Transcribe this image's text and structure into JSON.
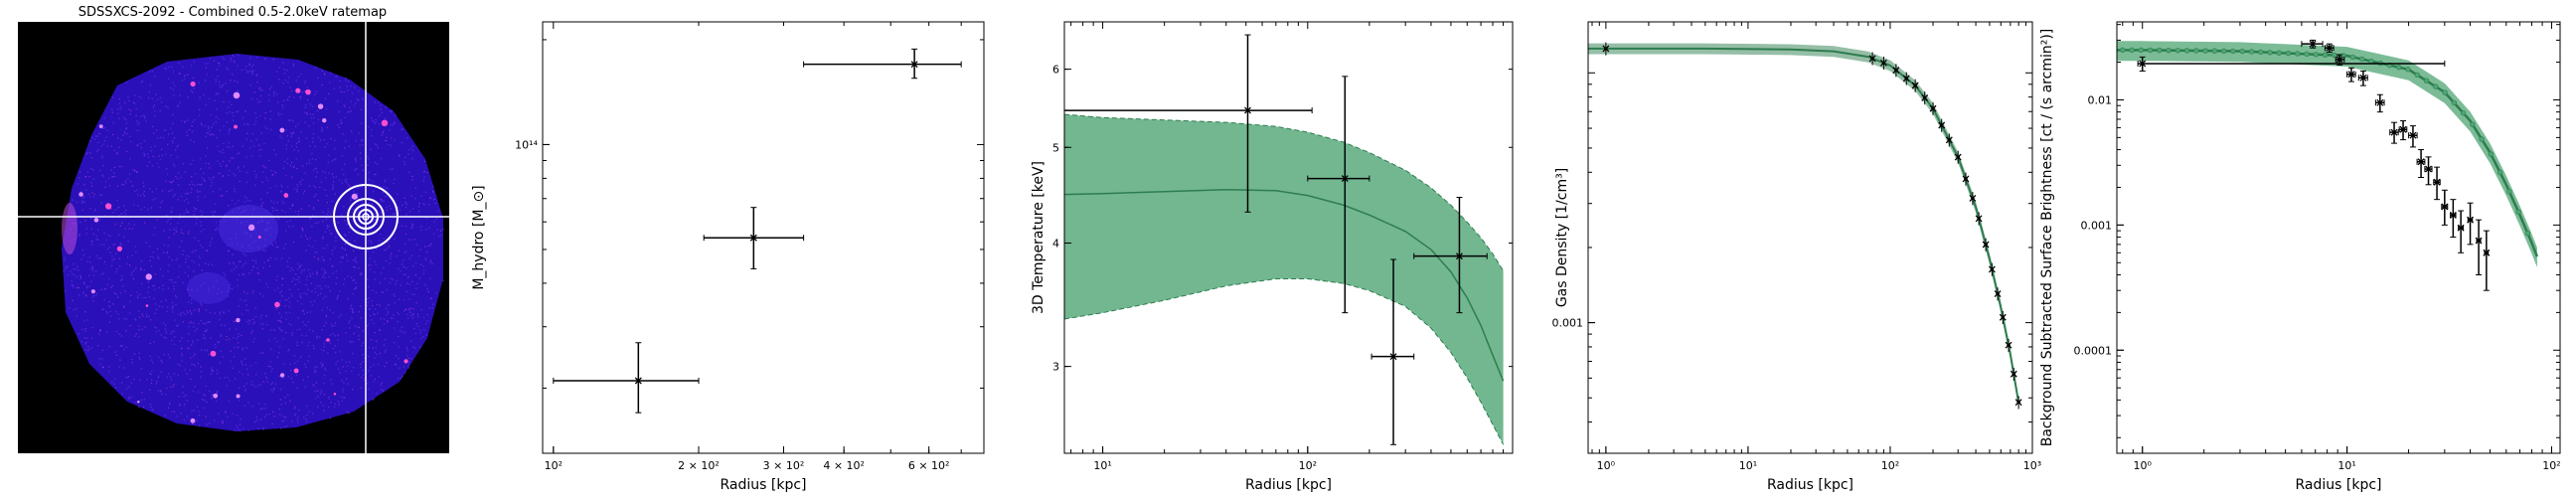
{
  "figure": {
    "image_panel": {
      "title": "SDSSXCS-2092 - Combined 0.5-2.0keV ratemap",
      "colors": {
        "background": "#000000",
        "cluster_fill": "#2a10b8",
        "sources": "#ff4fd0",
        "crosshair": "#ffffff"
      }
    }
  },
  "chart_data": [
    {
      "type": "scatter",
      "panel": "hydrostatic-mass",
      "xlabel": "Radius [kpc]",
      "ylabel": "M_hydro [M_⊙]",
      "xscale": "log",
      "yscale": "log",
      "xlim": [
        95,
        780
      ],
      "ylim": [
        13000000000000.0,
        225000000000000.0
      ],
      "xticks": [
        {
          "v": 100,
          "label": "10²"
        },
        {
          "v": 200,
          "label": "2 × 10²"
        },
        {
          "v": 300,
          "label": "3 × 10²"
        },
        {
          "v": 400,
          "label": "4 × 10²"
        },
        {
          "v": 600,
          "label": "6 × 10²"
        }
      ],
      "yticks": [
        {
          "v": 100000000000000.0,
          "label": "10¹⁴"
        }
      ],
      "points": [
        {
          "x": 150,
          "xlo": 100,
          "xhi": 200,
          "y": 21000000000000.0,
          "ylo": 17000000000000.0,
          "yhi": 27000000000000.0
        },
        {
          "x": 260,
          "xlo": 205,
          "xhi": 330,
          "y": 54000000000000.0,
          "ylo": 44000000000000.0,
          "yhi": 66000000000000.0
        },
        {
          "x": 560,
          "xlo": 330,
          "xhi": 700,
          "y": 170000000000000.0,
          "ylo": 155000000000000.0,
          "yhi": 188000000000000.0
        }
      ],
      "colors": {
        "points": "#000000"
      }
    },
    {
      "type": "area",
      "panel": "temperature-profile",
      "xlabel": "Radius [kpc]",
      "ylabel": "3D Temperature [keV]",
      "xscale": "log",
      "yscale": "log",
      "xlim": [
        6.5,
        1000
      ],
      "ylim": [
        2.45,
        6.7
      ],
      "xticks": [
        {
          "v": 10,
          "label": "10¹"
        },
        {
          "v": 100,
          "label": "10²"
        }
      ],
      "yticks": [
        {
          "v": 3,
          "label": "3"
        },
        {
          "v": 4,
          "label": "4"
        },
        {
          "v": 5,
          "label": "5"
        },
        {
          "v": 6,
          "label": "6"
        }
      ],
      "model": {
        "x": [
          6.5,
          10,
          20,
          40,
          70,
          100,
          150,
          200,
          300,
          400,
          500,
          600,
          700,
          800,
          900
        ],
        "y": [
          4.48,
          4.49,
          4.51,
          4.53,
          4.52,
          4.47,
          4.37,
          4.27,
          4.11,
          3.94,
          3.74,
          3.52,
          3.3,
          3.08,
          2.9
        ],
        "lo": [
          3.35,
          3.4,
          3.5,
          3.62,
          3.68,
          3.68,
          3.64,
          3.58,
          3.45,
          3.28,
          3.1,
          2.92,
          2.76,
          2.62,
          2.5
        ],
        "hi": [
          5.4,
          5.36,
          5.33,
          5.3,
          5.25,
          5.18,
          5.06,
          4.94,
          4.74,
          4.55,
          4.37,
          4.2,
          4.05,
          3.9,
          3.75
        ]
      },
      "points": [
        {
          "x": 51,
          "xlo": 6.5,
          "xhi": 105,
          "y": 5.45,
          "ylo": 4.3,
          "yhi": 6.5
        },
        {
          "x": 152,
          "xlo": 100,
          "xhi": 200,
          "y": 4.65,
          "ylo": 3.4,
          "yhi": 5.9
        },
        {
          "x": 262,
          "xlo": 205,
          "xhi": 330,
          "y": 3.07,
          "ylo": 2.5,
          "yhi": 3.85
        },
        {
          "x": 550,
          "xlo": 330,
          "xhi": 750,
          "y": 3.88,
          "ylo": 3.4,
          "yhi": 4.45
        }
      ],
      "colors": {
        "band": "#4fa574",
        "band_fill_opacity": 0.8,
        "line": "#2e7d4f",
        "points": "#000000"
      }
    },
    {
      "type": "line",
      "panel": "gas-density",
      "xlabel": "Radius [kpc]",
      "ylabel": "Gas Density [1/cm³]",
      "xscale": "log",
      "yscale": "log",
      "xlim": [
        0.75,
        1000
      ],
      "ylim": [
        0.0003,
        0.016
      ],
      "xticks": [
        {
          "v": 1,
          "label": "10⁰"
        },
        {
          "v": 10,
          "label": "10¹"
        },
        {
          "v": 100,
          "label": "10²"
        },
        {
          "v": 1000,
          "label": "10³"
        }
      ],
      "yticks": [
        {
          "v": 0.001,
          "label": "0.001"
        }
      ],
      "model": {
        "x": [
          0.75,
          1,
          5,
          20,
          40,
          70,
          100,
          150,
          200,
          300,
          400,
          500,
          600,
          700,
          800
        ],
        "y": [
          0.0125,
          0.0125,
          0.0125,
          0.0124,
          0.0122,
          0.0116,
          0.0107,
          0.0089,
          0.0072,
          0.0046,
          0.0029,
          0.0018,
          0.00115,
          0.00075,
          0.00048
        ]
      },
      "points_x": [
        1,
        75,
        90,
        110,
        130,
        150,
        175,
        200,
        230,
        260,
        300,
        340,
        380,
        420,
        470,
        520,
        570,
        620,
        680,
        740,
        800
      ],
      "colors": {
        "line": "#2e7d4f",
        "points": "#000000"
      }
    },
    {
      "type": "line",
      "panel": "surface-brightness",
      "xlabel": "Radius [kpc]",
      "ylabel": "Background Subtracted Surface Brightness [ct / (s arcmin²)]",
      "xscale": "log",
      "yscale": "log",
      "xlim": [
        0.75,
        110
      ],
      "ylim": [
        1.5e-05,
        0.042
      ],
      "xticks": [
        {
          "v": 1,
          "label": "10⁰"
        },
        {
          "v": 10,
          "label": "10¹"
        },
        {
          "v": 100,
          "label": "10²"
        }
      ],
      "yticks": [
        {
          "v": 0.01,
          "label": "0.01"
        },
        {
          "v": 0.001,
          "label": "0.001"
        },
        {
          "v": 0.0001,
          "label": "0.0001"
        }
      ],
      "model": {
        "x": [
          0.75,
          1,
          3,
          10,
          20,
          30,
          40,
          50,
          60,
          70,
          80,
          85
        ],
        "y": [
          0.025,
          0.025,
          0.0245,
          0.0225,
          0.0175,
          0.0115,
          0.0068,
          0.0038,
          0.0021,
          0.0012,
          0.00072,
          0.00056
        ],
        "band_rel": 0.18
      },
      "points": [
        {
          "x": 1,
          "xlo": 0.95,
          "xhi": 30,
          "y": 0.0195,
          "ylo": 0.017,
          "yhi": 0.022
        },
        {
          "x": 6.8,
          "xlo": 6,
          "xhi": 7.6,
          "y": 0.028,
          "ylo": 0.026,
          "yhi": 0.03
        },
        {
          "x": 8.2,
          "xlo": 7.8,
          "xhi": 8.6,
          "y": 0.026,
          "ylo": 0.024,
          "yhi": 0.028
        },
        {
          "x": 9.2,
          "xlo": 8.8,
          "xhi": 9.7,
          "y": 0.021,
          "ylo": 0.019,
          "yhi": 0.023
        },
        {
          "x": 10.5,
          "xlo": 10,
          "xhi": 11,
          "y": 0.016,
          "ylo": 0.014,
          "yhi": 0.018
        },
        {
          "x": 12,
          "xlo": 11.4,
          "xhi": 12.6,
          "y": 0.015,
          "ylo": 0.013,
          "yhi": 0.017
        },
        {
          "x": 14.5,
          "xlo": 13.8,
          "xhi": 15.2,
          "y": 0.0095,
          "ylo": 0.008,
          "yhi": 0.011
        },
        {
          "x": 17,
          "xlo": 16.2,
          "xhi": 17.8,
          "y": 0.0055,
          "ylo": 0.0045,
          "yhi": 0.0066
        },
        {
          "x": 18.8,
          "xlo": 18,
          "xhi": 19.6,
          "y": 0.0058,
          "ylo": 0.0048,
          "yhi": 0.0068
        },
        {
          "x": 21,
          "xlo": 20,
          "xhi": 22,
          "y": 0.0052,
          "ylo": 0.0042,
          "yhi": 0.0062
        },
        {
          "x": 23,
          "xlo": 22,
          "xhi": 24,
          "y": 0.0032,
          "ylo": 0.0024,
          "yhi": 0.004
        },
        {
          "x": 25,
          "xlo": 24,
          "xhi": 26,
          "y": 0.0028,
          "ylo": 0.0021,
          "yhi": 0.0035
        },
        {
          "x": 27.5,
          "xlo": 26.5,
          "xhi": 28.5,
          "y": 0.0022,
          "ylo": 0.0016,
          "yhi": 0.0029
        },
        {
          "x": 30,
          "xlo": 29,
          "xhi": 31,
          "y": 0.0014,
          "ylo": 0.001,
          "yhi": 0.0019
        },
        {
          "x": 33,
          "xlo": 32,
          "xhi": 34,
          "y": 0.0012,
          "ylo": 0.0008,
          "yhi": 0.0016
        },
        {
          "x": 36,
          "xlo": 35,
          "xhi": 37,
          "y": 0.00095,
          "ylo": 0.0006,
          "yhi": 0.0013
        },
        {
          "x": 40,
          "xlo": 39,
          "xhi": 41,
          "y": 0.0011,
          "ylo": 0.0007,
          "yhi": 0.0015
        },
        {
          "x": 44,
          "xlo": 43,
          "xhi": 45,
          "y": 0.00075,
          "ylo": 0.0004,
          "yhi": 0.0011
        },
        {
          "x": 48,
          "xlo": 47,
          "xhi": 49,
          "y": 0.0006,
          "ylo": 0.0003,
          "yhi": 0.0009
        }
      ],
      "colors": {
        "band": "#4fa574",
        "line": "#2e7d4f",
        "points": "#000000"
      }
    }
  ]
}
